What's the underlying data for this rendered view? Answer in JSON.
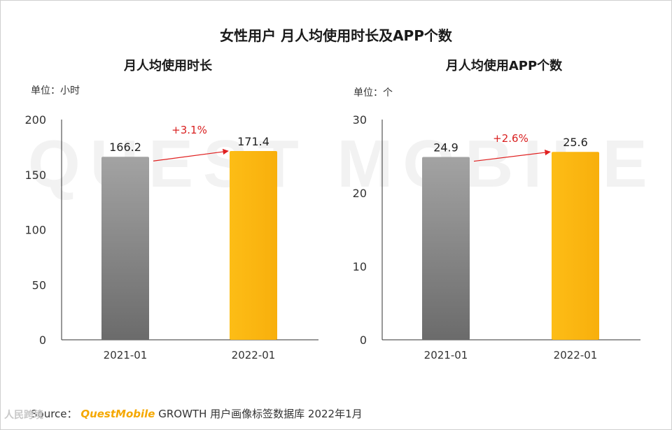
{
  "title": "女性用户 月人均使用时长及APP个数",
  "watermark": "QUEST MOBILE",
  "source": {
    "prefix": "Source：",
    "brand": "QuestMobile",
    "text": "GROWTH 用户画像标签数据库 2022年1月"
  },
  "corner_logo": "人民跨境",
  "charts": [
    {
      "subtitle": "月人均使用时长",
      "unit": "单位：小时"
    },
    {
      "subtitle": "月人均使用APP个数",
      "unit": "单位：个"
    }
  ],
  "colors": {
    "bar_2021": "#7a7a7a",
    "bar_2022": "#fcb813",
    "arrow": "#e02020",
    "growth_text": "#d92020"
  },
  "chart_data": [
    {
      "type": "bar",
      "title": "月人均使用时长",
      "ylabel": "单位：小时",
      "categories": [
        "2021-01",
        "2022-01"
      ],
      "values": [
        166.2,
        171.4
      ],
      "ylim": [
        0,
        200
      ],
      "yticks": [
        0,
        50,
        100,
        150,
        200
      ],
      "data_labels": [
        "166.2",
        "171.4"
      ],
      "annotation": "+3.1%"
    },
    {
      "type": "bar",
      "title": "月人均使用APP个数",
      "ylabel": "单位：个",
      "categories": [
        "2021-01",
        "2022-01"
      ],
      "values": [
        24.9,
        25.6
      ],
      "ylim": [
        0,
        30
      ],
      "yticks": [
        0,
        10,
        20,
        30
      ],
      "data_labels": [
        "24.9",
        "25.6"
      ],
      "annotation": "+2.6%"
    }
  ]
}
